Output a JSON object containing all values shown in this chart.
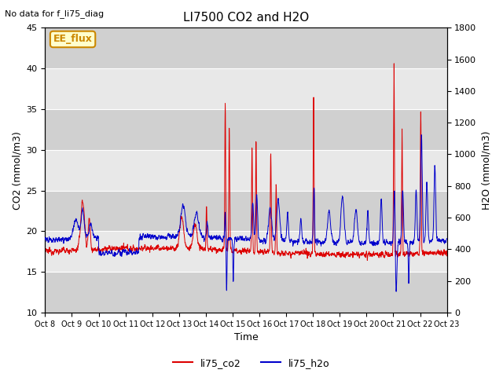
{
  "title": "LI7500 CO2 and H2O",
  "xlabel": "Time",
  "ylabel_left": "CO2 (mmol/m3)",
  "ylabel_right": "H2O (mmol/m3)",
  "no_data_text": "No data for f_li75_diag",
  "ee_flux_label": "EE_flux",
  "ylim_left": [
    10,
    45
  ],
  "ylim_right": [
    0,
    1800
  ],
  "yticks_left": [
    10,
    15,
    20,
    25,
    30,
    35,
    40,
    45
  ],
  "yticks_right": [
    0,
    200,
    400,
    600,
    800,
    1000,
    1200,
    1400,
    1600,
    1800
  ],
  "xtick_labels": [
    "Oct 8",
    "Oct 9",
    "Oct 10",
    "Oct 11",
    "Oct 12",
    "Oct 13",
    "Oct 14",
    "Oct 15",
    "Oct 16",
    "Oct 17",
    "Oct 18",
    "Oct 19",
    "Oct 20",
    "Oct 21",
    "Oct 22",
    "Oct 23"
  ],
  "color_co2": "#dd0000",
  "color_h2o": "#0000cc",
  "legend_co2": "li75_co2",
  "legend_h2o": "li75_h2o",
  "plot_bg": "#e8e8e8",
  "band_color": "#d0d0d0",
  "ee_flux_color": "#cc8800",
  "ee_flux_bg": "#ffffcc"
}
